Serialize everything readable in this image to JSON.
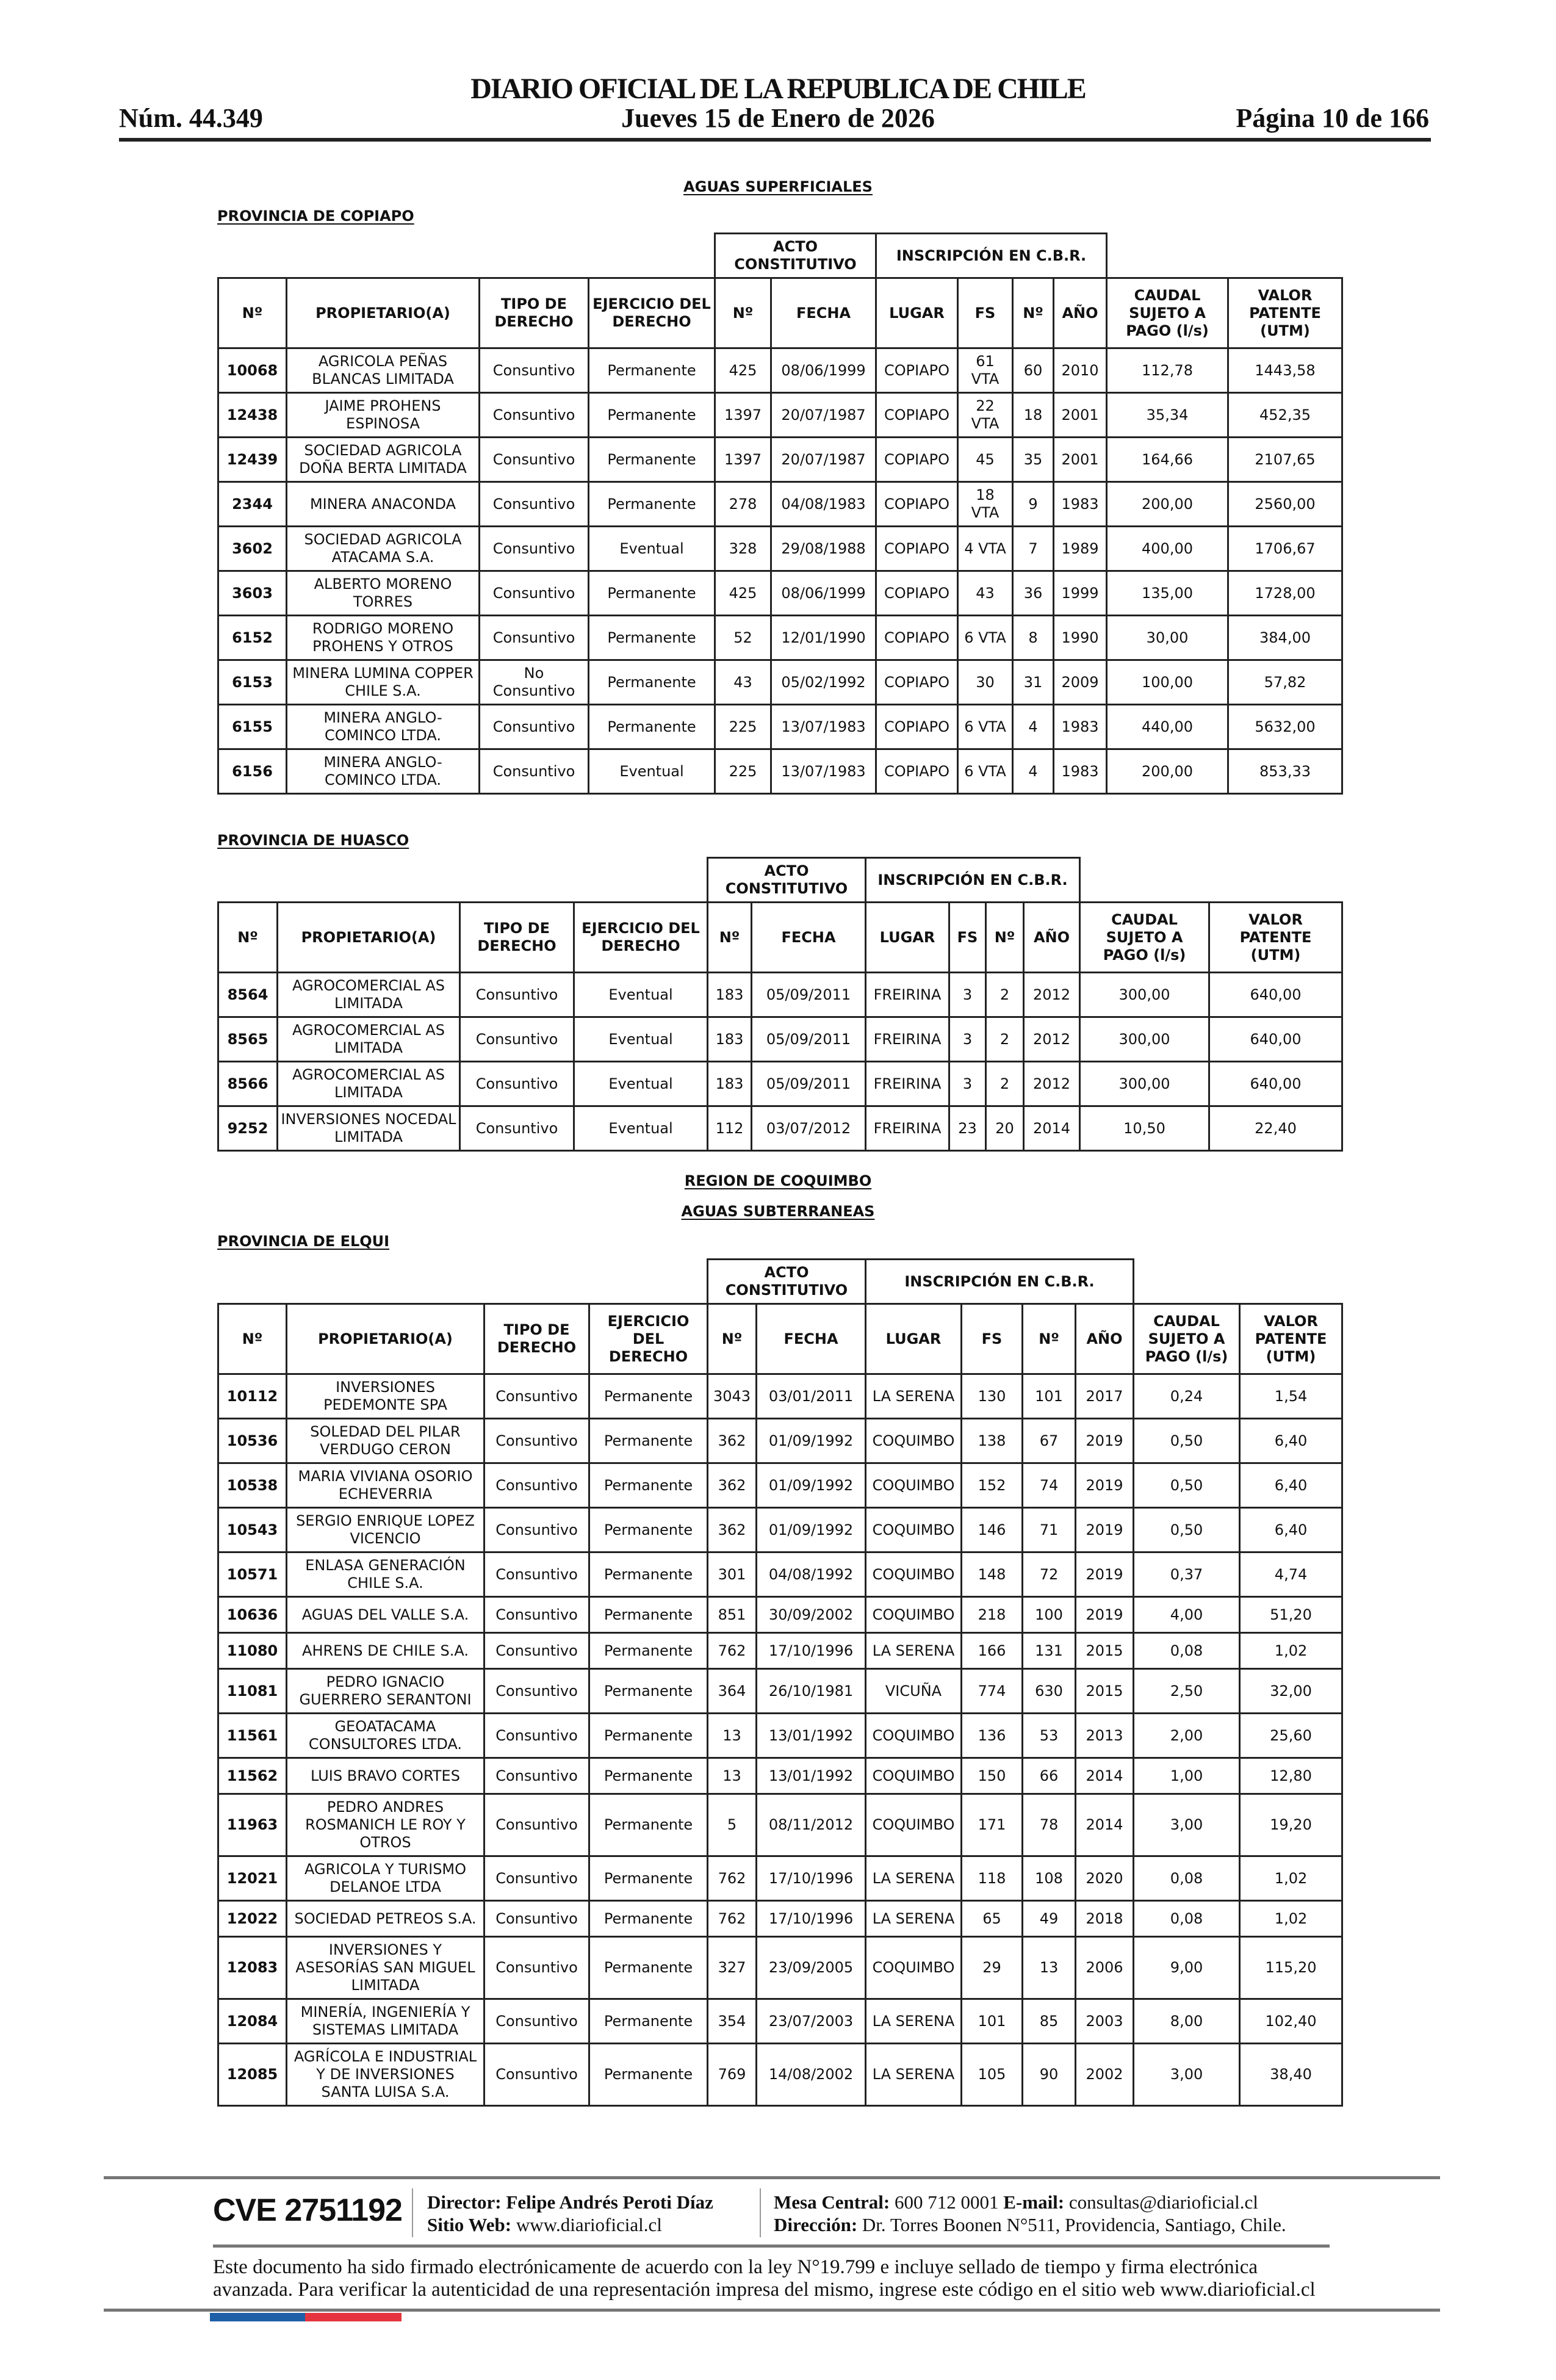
{
  "header": {
    "title": "DIARIO OFICIAL DE LA REPUBLICA DE CHILE",
    "issue": "Núm. 44.349",
    "date": "Jueves 15 de Enero de 2026",
    "page": "Página 10 de 166"
  },
  "sections": {
    "aguas_superficiales": "AGUAS SUPERFICIALES",
    "provincia_copiapo": "PROVINCIA DE COPIAPO",
    "provincia_huasco": "PROVINCIA DE HUASCO",
    "region_coquimbo": "REGION DE COQUIMBO",
    "aguas_subterraneas": "AGUAS SUBTERRANEAS",
    "provincia_elqui": "PROVINCIA DE ELQUI"
  },
  "tables": [
    {
      "group_headers": [
        "ACTO CONSTITUTIVO",
        "INSCRIPCIÓN EN C.B.R."
      ],
      "columns": [
        "Nº",
        "PROPIETARIO(A)",
        "TIPO DE DERECHO",
        "EJERCICIO DEL DERECHO",
        "Nº",
        "FECHA",
        "LUGAR",
        "FS",
        "Nº",
        "AÑO",
        "CAUDAL SUJETO A PAGO (l/s)",
        "VALOR PATENTE (UTM)"
      ],
      "rows": [
        [
          "10068",
          "AGRICOLA PEÑAS BLANCAS LIMITADA",
          "Consuntivo",
          "Permanente",
          "425",
          "08/06/1999",
          "COPIAPO",
          "61 VTA",
          "60",
          "2010",
          "112,78",
          "1443,58"
        ],
        [
          "12438",
          "JAIME PROHENS ESPINOSA",
          "Consuntivo",
          "Permanente",
          "1397",
          "20/07/1987",
          "COPIAPO",
          "22 VTA",
          "18",
          "2001",
          "35,34",
          "452,35"
        ],
        [
          "12439",
          "SOCIEDAD AGRICOLA DOÑA BERTA LIMITADA",
          "Consuntivo",
          "Permanente",
          "1397",
          "20/07/1987",
          "COPIAPO",
          "45",
          "35",
          "2001",
          "164,66",
          "2107,65"
        ],
        [
          "2344",
          "MINERA ANACONDA",
          "Consuntivo",
          "Permanente",
          "278",
          "04/08/1983",
          "COPIAPO",
          "18 VTA",
          "9",
          "1983",
          "200,00",
          "2560,00"
        ],
        [
          "3602",
          "SOCIEDAD AGRICOLA ATACAMA S.A.",
          "Consuntivo",
          "Eventual",
          "328",
          "29/08/1988",
          "COPIAPO",
          "4 VTA",
          "7",
          "1989",
          "400,00",
          "1706,67"
        ],
        [
          "3603",
          "ALBERTO MORENO TORRES",
          "Consuntivo",
          "Permanente",
          "425",
          "08/06/1999",
          "COPIAPO",
          "43",
          "36",
          "1999",
          "135,00",
          "1728,00"
        ],
        [
          "6152",
          "RODRIGO MORENO PROHENS Y OTROS",
          "Consuntivo",
          "Permanente",
          "52",
          "12/01/1990",
          "COPIAPO",
          "6 VTA",
          "8",
          "1990",
          "30,00",
          "384,00"
        ],
        [
          "6153",
          "MINERA LUMINA COPPER CHILE S.A.",
          "No Consuntivo",
          "Permanente",
          "43",
          "05/02/1992",
          "COPIAPO",
          "30",
          "31",
          "2009",
          "100,00",
          "57,82"
        ],
        [
          "6155",
          "MINERA ANGLO-COMINCO LTDA.",
          "Consuntivo",
          "Permanente",
          "225",
          "13/07/1983",
          "COPIAPO",
          "6 VTA",
          "4",
          "1983",
          "440,00",
          "5632,00"
        ],
        [
          "6156",
          "MINERA ANGLO-COMINCO LTDA.",
          "Consuntivo",
          "Eventual",
          "225",
          "13/07/1983",
          "COPIAPO",
          "6 VTA",
          "4",
          "1983",
          "200,00",
          "853,33"
        ]
      ]
    },
    {
      "group_headers": [
        "ACTO CONSTITUTIVO",
        "INSCRIPCIÓN EN C.B.R."
      ],
      "columns": [
        "Nº",
        "PROPIETARIO(A)",
        "TIPO DE DERECHO",
        "EJERCICIO DEL DERECHO",
        "Nº",
        "FECHA",
        "LUGAR",
        "FS",
        "Nº",
        "AÑO",
        "CAUDAL SUJETO A PAGO (l/s)",
        "VALOR PATENTE (UTM)"
      ],
      "rows": [
        [
          "8564",
          "AGROCOMERCIAL AS LIMITADA",
          "Consuntivo",
          "Eventual",
          "183",
          "05/09/2011",
          "FREIRINA",
          "3",
          "2",
          "2012",
          "300,00",
          "640,00"
        ],
        [
          "8565",
          "AGROCOMERCIAL AS LIMITADA",
          "Consuntivo",
          "Eventual",
          "183",
          "05/09/2011",
          "FREIRINA",
          "3",
          "2",
          "2012",
          "300,00",
          "640,00"
        ],
        [
          "8566",
          "AGROCOMERCIAL AS LIMITADA",
          "Consuntivo",
          "Eventual",
          "183",
          "05/09/2011",
          "FREIRINA",
          "3",
          "2",
          "2012",
          "300,00",
          "640,00"
        ],
        [
          "9252",
          "INVERSIONES NOCEDAL LIMITADA",
          "Consuntivo",
          "Eventual",
          "112",
          "03/07/2012",
          "FREIRINA",
          "23",
          "20",
          "2014",
          "10,50",
          "22,40"
        ]
      ]
    },
    {
      "group_headers": [
        "ACTO CONSTITUTIVO",
        "INSCRIPCIÓN EN C.B.R."
      ],
      "columns": [
        "Nº",
        "PROPIETARIO(A)",
        "TIPO DE DERECHO",
        "EJERCICIO DEL DERECHO",
        "Nº",
        "FECHA",
        "LUGAR",
        "FS",
        "Nº",
        "AÑO",
        "CAUDAL SUJETO A PAGO (l/s)",
        "VALOR PATENTE (UTM)"
      ],
      "rows": [
        [
          "10112",
          "INVERSIONES PEDEMONTE SPA",
          "Consuntivo",
          "Permanente",
          "3043",
          "03/01/2011",
          "LA SERENA",
          "130",
          "101",
          "2017",
          "0,24",
          "1,54"
        ],
        [
          "10536",
          "SOLEDAD DEL PILAR VERDUGO CERON",
          "Consuntivo",
          "Permanente",
          "362",
          "01/09/1992",
          "COQUIMBO",
          "138",
          "67",
          "2019",
          "0,50",
          "6,40"
        ],
        [
          "10538",
          "MARIA VIVIANA OSORIO ECHEVERRIA",
          "Consuntivo",
          "Permanente",
          "362",
          "01/09/1992",
          "COQUIMBO",
          "152",
          "74",
          "2019",
          "0,50",
          "6,40"
        ],
        [
          "10543",
          "SERGIO ENRIQUE LOPEZ VICENCIO",
          "Consuntivo",
          "Permanente",
          "362",
          "01/09/1992",
          "COQUIMBO",
          "146",
          "71",
          "2019",
          "0,50",
          "6,40"
        ],
        [
          "10571",
          "ENLASA GENERACIÓN CHILE S.A.",
          "Consuntivo",
          "Permanente",
          "301",
          "04/08/1992",
          "COQUIMBO",
          "148",
          "72",
          "2019",
          "0,37",
          "4,74"
        ],
        [
          "10636",
          "AGUAS DEL VALLE S.A.",
          "Consuntivo",
          "Permanente",
          "851",
          "30/09/2002",
          "COQUIMBO",
          "218",
          "100",
          "2019",
          "4,00",
          "51,20"
        ],
        [
          "11080",
          "AHRENS DE CHILE S.A.",
          "Consuntivo",
          "Permanente",
          "762",
          "17/10/1996",
          "LA SERENA",
          "166",
          "131",
          "2015",
          "0,08",
          "1,02"
        ],
        [
          "11081",
          "PEDRO IGNACIO GUERRERO SERANTONI",
          "Consuntivo",
          "Permanente",
          "364",
          "26/10/1981",
          "VICUÑA",
          "774",
          "630",
          "2015",
          "2,50",
          "32,00"
        ],
        [
          "11561",
          "GEOATACAMA CONSULTORES LTDA.",
          "Consuntivo",
          "Permanente",
          "13",
          "13/01/1992",
          "COQUIMBO",
          "136",
          "53",
          "2013",
          "2,00",
          "25,60"
        ],
        [
          "11562",
          "LUIS BRAVO CORTES",
          "Consuntivo",
          "Permanente",
          "13",
          "13/01/1992",
          "COQUIMBO",
          "150",
          "66",
          "2014",
          "1,00",
          "12,80"
        ],
        [
          "11963",
          "PEDRO ANDRES ROSMANICH LE ROY Y OTROS",
          "Consuntivo",
          "Permanente",
          "5",
          "08/11/2012",
          "COQUIMBO",
          "171",
          "78",
          "2014",
          "3,00",
          "19,20"
        ],
        [
          "12021",
          "AGRICOLA Y TURISMO DELANOE LTDA",
          "Consuntivo",
          "Permanente",
          "762",
          "17/10/1996",
          "LA SERENA",
          "118",
          "108",
          "2020",
          "0,08",
          "1,02"
        ],
        [
          "12022",
          "SOCIEDAD PETREOS S.A.",
          "Consuntivo",
          "Permanente",
          "762",
          "17/10/1996",
          "LA SERENA",
          "65",
          "49",
          "2018",
          "0,08",
          "1,02"
        ],
        [
          "12083",
          "INVERSIONES Y ASESORÍAS SAN MIGUEL LIMITADA",
          "Consuntivo",
          "Permanente",
          "327",
          "23/09/2005",
          "COQUIMBO",
          "29",
          "13",
          "2006",
          "9,00",
          "115,20"
        ],
        [
          "12084",
          "MINERÍA, INGENIERÍA Y SISTEMAS LIMITADA",
          "Consuntivo",
          "Permanente",
          "354",
          "23/07/2003",
          "LA SERENA",
          "101",
          "85",
          "2003",
          "8,00",
          "102,40"
        ],
        [
          "12085",
          "AGRÍCOLA E INDUSTRIAL Y DE INVERSIONES SANTA LUISA S.A.",
          "Consuntivo",
          "Permanente",
          "769",
          "14/08/2002",
          "LA SERENA",
          "105",
          "90",
          "2002",
          "3,00",
          "38,40"
        ]
      ]
    }
  ],
  "footer": {
    "cve": "CVE 2751192",
    "director_label": "Director:",
    "director": "Felipe Andrés Peroti Díaz",
    "web_label": "Sitio Web:",
    "web": "www.diarioficial.cl",
    "phone_label": "Mesa Central:",
    "phone": "600 712 0001",
    "email_label": "E-mail:",
    "email": "consultas@diarioficial.cl",
    "address_label": "Dirección:",
    "address": "Dr. Torres Boonen N°511, Providencia, Santiago, Chile.",
    "disclaimer": "Este documento ha sido firmado electrónicamente de acuerdo con la ley N°19.799 e incluye sellado de tiempo y firma electrónica avanzada. Para verificar la autenticidad de una representación impresa del mismo, ingrese este código en el sitio web www.diarioficial.cl",
    "flag_colors": [
      "#1f5fa8",
      "#e5343f"
    ]
  }
}
